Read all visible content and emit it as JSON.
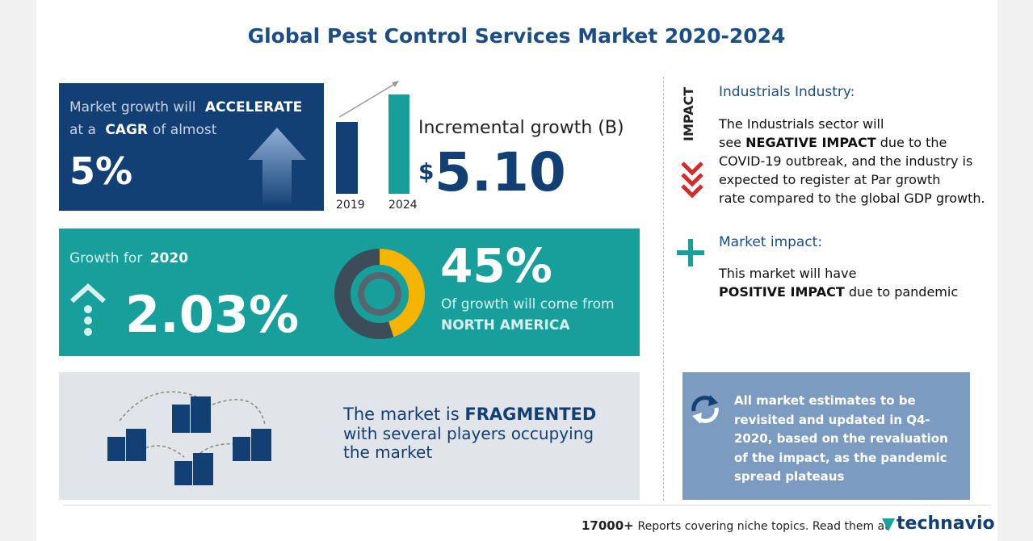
{
  "title": "Global Pest Control Services Market 2020-2024",
  "cagr": {
    "text1": "Market growth will",
    "text1_bold": "ACCELERATE",
    "text2": "at a",
    "text2_bold": "CAGR",
    "text3": "of almost",
    "value": "5%"
  },
  "incremental": {
    "years": [
      "2019",
      "2024"
    ],
    "label": "Incremental growth (B)",
    "currency": "$",
    "value": "5.10"
  },
  "growth_2020": {
    "label": "Growth for",
    "year": "2020",
    "value": "2.03%"
  },
  "region": {
    "share": {
      "value": 45,
      "label": "45%"
    },
    "text": "Of growth will come from",
    "region": "NORTH AMERICA"
  },
  "fragmented": {
    "text1": "The market is",
    "bold": "FRAGMENTED",
    "text2": "with several players occupying the market"
  },
  "impact": {
    "vertical_label": "IMPACT",
    "heading": "Industrials Industry:",
    "line1": "The Industrials sector will",
    "line2_pre": "see",
    "line2_bold": "NEGATIVE IMPACT",
    "line2_post": "due to the",
    "rest": [
      "COVID-19 outbreak, and the industry is",
      "expected to register at Par growth",
      "rate compared to the global GDP growth."
    ]
  },
  "market_impact": {
    "heading": "Market impact:",
    "line1": "This market will have",
    "bold": "POSITIVE IMPACT",
    "post": "due to pandemic"
  },
  "note": [
    "All market estimates to be",
    "revisited and updated in Q4-",
    "2020, based on the revaluation",
    "of the impact, as the pandemic",
    "spread plateaus"
  ],
  "footer": {
    "count": "17000+",
    "text": "Reports covering niche topics. Read them at",
    "brand": "technavio"
  }
}
